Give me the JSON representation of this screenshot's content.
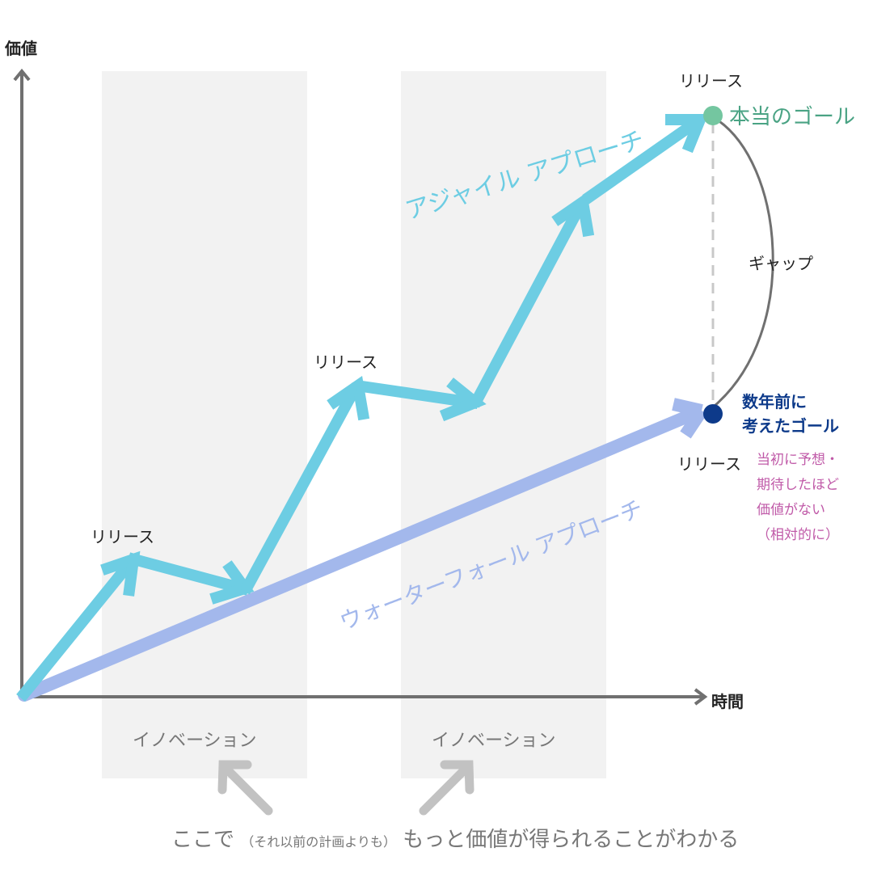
{
  "axes": {
    "y_label": "価値",
    "x_label": "時間"
  },
  "innovation_label": "イノベーション",
  "release_label": "リリース",
  "agile_label": "アジャイル アプローチ",
  "waterfall_label": "ウォーターフォール アプローチ",
  "true_goal": "本当のゴール",
  "old_goal": {
    "line1": "数年前に",
    "line2": "考えたゴール"
  },
  "gap_label": "ギャップ",
  "note": [
    "当初に予想・",
    "期待したほど",
    "価値がない",
    "（相対的に）"
  ],
  "bottom_text": {
    "part1": "ここで",
    "small": "（それ以前の計画よりも）",
    "part2": "もっと価値が得られることがわかる"
  },
  "colors": {
    "agile": "#6dcde3",
    "waterfall": "#a3b8ec",
    "axis": "#707070",
    "band": "#f2f2f2",
    "true_goal": "#74c6a0",
    "old_goal": "#0d3a8a"
  }
}
